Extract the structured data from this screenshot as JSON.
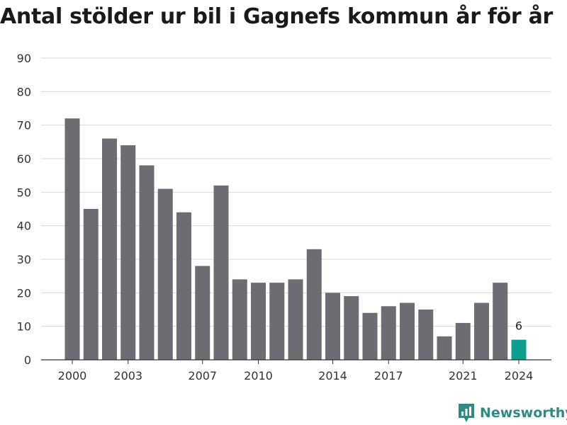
{
  "chart_data": {
    "type": "bar",
    "title": "Antal stölder ur bil i Gagnefs kommun år för år",
    "categories": [
      "2000",
      "2001",
      "2002",
      "2003",
      "2004",
      "2005",
      "2006",
      "2007",
      "2008",
      "2009",
      "2010",
      "2011",
      "2012",
      "2013",
      "2014",
      "2015",
      "2016",
      "2017",
      "2018",
      "2019",
      "2020",
      "2021",
      "2022",
      "2023",
      "2024"
    ],
    "x_tick_labels": [
      "2000",
      "2003",
      "2007",
      "2010",
      "2014",
      "2017",
      "2021",
      "2024"
    ],
    "values": [
      72,
      45,
      66,
      64,
      58,
      51,
      44,
      28,
      52,
      24,
      23,
      23,
      24,
      33,
      20,
      19,
      14,
      16,
      17,
      15,
      7,
      11,
      17,
      23,
      6
    ],
    "highlight_index": 24,
    "highlight_label": "6",
    "ylim": [
      0,
      90
    ],
    "y_ticks": [
      0,
      10,
      20,
      30,
      40,
      50,
      60,
      70,
      80,
      90
    ],
    "grid": true,
    "colors": {
      "bar": "#6d6c72",
      "highlight": "#0f9e8e",
      "grid": "#d9d9d9",
      "axis": "#333333",
      "text": "#333333"
    }
  },
  "brand": {
    "name": "Newsworthy",
    "color": "#2e8b84",
    "icon": "newsworthy-logo-icon"
  }
}
